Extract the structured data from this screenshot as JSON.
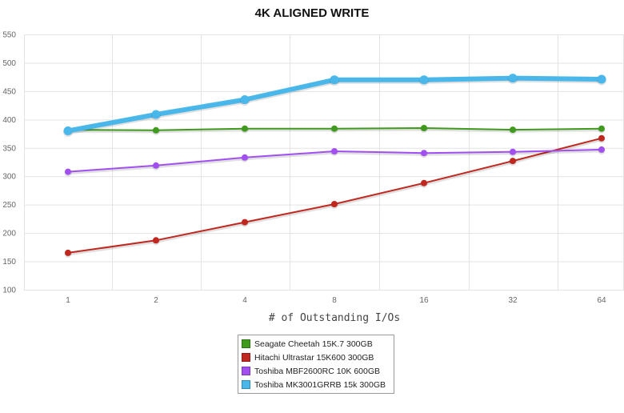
{
  "chart_data": {
    "type": "line",
    "title": "4K ALIGNED WRITE",
    "xlabel": "# of Outstanding I/Os",
    "ylabel": "",
    "categories": [
      "1",
      "2",
      "4",
      "8",
      "16",
      "32",
      "64"
    ],
    "ylim": [
      100,
      550
    ],
    "yticks": [
      100,
      150,
      200,
      250,
      300,
      350,
      400,
      450,
      500,
      550
    ],
    "grid": true,
    "legend_position": "bottom-center",
    "series": [
      {
        "name": "Seagate Cheetah 15K.7 300GB",
        "color": "#3f9a1e",
        "values": [
          382,
          381,
          384,
          384,
          385,
          382,
          384
        ]
      },
      {
        "name": "Hitachi Ultrastar 15K600 300GB",
        "color": "#c0271f",
        "values": [
          165,
          187,
          219,
          251,
          288,
          327,
          367
        ]
      },
      {
        "name": "Toshiba MBF2600RC 10K 600GB",
        "color": "#a24ff0",
        "values": [
          308,
          319,
          333,
          344,
          341,
          343,
          347
        ]
      },
      {
        "name": "Toshiba MK3001GRRB 15k 300GB",
        "color": "#4ab7ea",
        "values": [
          380,
          409,
          435,
          470,
          470,
          473,
          471
        ]
      }
    ]
  }
}
